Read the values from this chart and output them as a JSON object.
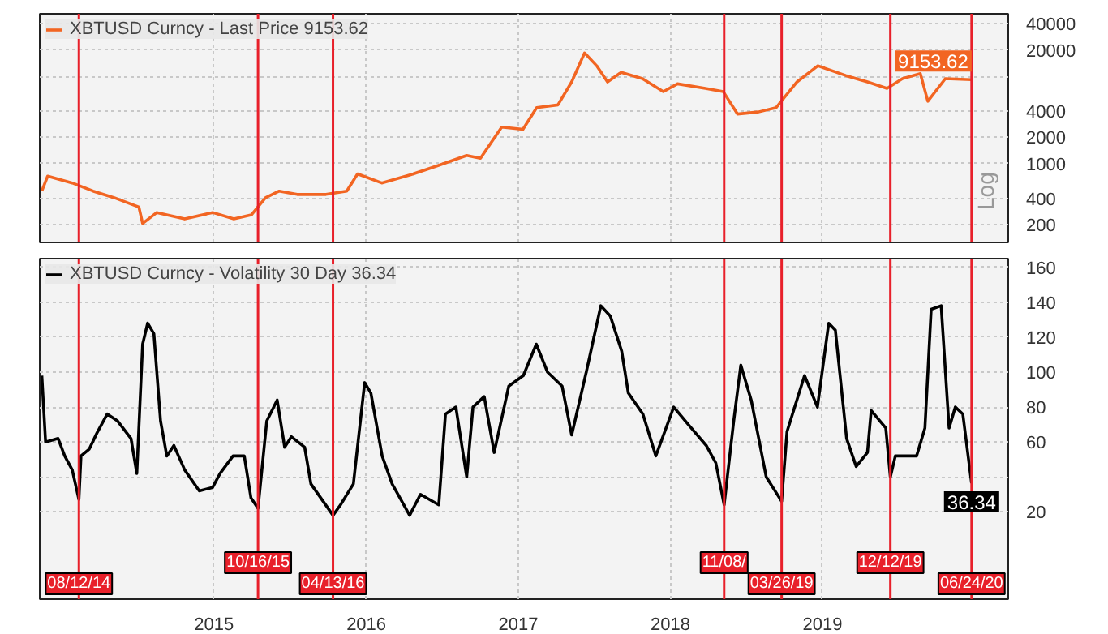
{
  "chart_data": [
    {
      "type": "line",
      "tick_labels": "y",
      "log": "y",
      "grid": true,
      "legend": "top left",
      "xlim": [
        "2014-05-10",
        "2020-09-20"
      ],
      "ylim": [
        125,
        52000
      ],
      "xticks": [
        {
          "value": "2015-07-02",
          "label": null
        },
        {
          "value": "2016-07-02",
          "label": null
        },
        {
          "value": "2017-07-02",
          "label": null
        },
        {
          "value": "2018-07-02",
          "label": null
        },
        {
          "value": "2019-07-02",
          "label": null
        }
      ],
      "yticks": [
        200,
        400,
        1000,
        2000,
        4000,
        {
          "value": 10000,
          "label": null
        },
        20000,
        40000
      ],
      "series": [
        {
          "name": "XBTUSD Curncy - Last Price 9153.62",
          "color": "#f26522",
          "x": [
            "2014-05-15",
            "2014-05-29",
            "2014-07-27",
            "2014-09-15",
            "2014-11-05",
            "2015-01-03",
            "2015-01-12",
            "2015-02-15",
            "2015-04-23",
            "2015-06-29",
            "2015-08-19",
            "2015-09-30",
            "2015-11-03",
            "2015-12-06",
            "2016-01-18",
            "2016-03-27",
            "2016-05-16",
            "2016-06-11",
            "2016-08-08",
            "2016-10-15",
            "2016-12-21",
            "2017-02-28",
            "2017-04-02",
            "2017-05-23",
            "2017-07-13",
            "2017-08-15",
            "2017-10-05",
            "2017-11-07",
            "2017-12-08",
            "2018-01-06",
            "2018-02-01",
            "2018-03-06",
            "2018-04-26",
            "2018-06-15",
            "2018-07-19",
            "2018-09-24",
            "2018-11-06",
            "2018-12-10",
            "2019-01-29",
            "2019-03-13",
            "2019-05-02",
            "2019-06-21",
            "2019-08-27",
            "2019-10-18",
            "2019-12-04",
            "2020-01-10",
            "2020-02-22",
            "2020-03-11",
            "2020-04-22",
            "2020-06-24"
          ],
          "values": [
            484,
            718,
            600,
            484,
            406,
            318,
            206,
            275,
            232,
            275,
            232,
            258,
            406,
            484,
            443,
            443,
            484,
            762,
            600,
            740,
            948,
            1240,
            1150,
            2620,
            2470,
            4380,
            4700,
            8630,
            18500,
            13200,
            8630,
            11100,
            9400,
            6670,
            8200,
            7270,
            6660,
            3700,
            3900,
            4380,
            8630,
            13200,
            10200,
            8630,
            7270,
            9400,
            10740,
            5180,
            9400,
            9153.62
          ]
        }
      ],
      "ref_lines": [
        {
          "axis": "x",
          "value": "2014-08-12",
          "label": null,
          "color": "#e8202a"
        },
        {
          "axis": "x",
          "value": "2015-10-16",
          "label": null,
          "color": "#e8202a"
        },
        {
          "axis": "x",
          "value": "2016-04-13",
          "label": null,
          "color": "#e8202a"
        },
        {
          "axis": "x",
          "value": "2018-11-08",
          "label": null,
          "color": "#e8202a"
        },
        {
          "axis": "x",
          "value": "2019-03-26",
          "label": null,
          "color": "#e8202a"
        },
        {
          "axis": "x",
          "value": "2019-12-12",
          "label": null,
          "color": "#e8202a"
        },
        {
          "axis": "x",
          "value": "2020-06-24",
          "label": null,
          "color": "#e8202a"
        }
      ],
      "annotations": [
        {
          "text": "9153.62",
          "x": "2020-06-24",
          "y": 9153.62
        },
        "Log"
      ]
    },
    {
      "type": "line",
      "grid": true,
      "legend": "top left",
      "xlim": [
        "2014-05-10",
        "2020-09-20"
      ],
      "ylim": [
        -30,
        165
      ],
      "xticks": [
        {
          "value": "2015-07-02",
          "label": "2015"
        },
        {
          "value": "2016-07-02",
          "label": "2016"
        },
        {
          "value": "2017-07-02",
          "label": "2017"
        },
        {
          "value": "2018-07-02",
          "label": "2018"
        },
        {
          "value": "2019-07-02",
          "label": "2019"
        }
      ],
      "yticks": [
        20,
        {
          "value": 40,
          "label": null
        },
        60,
        80,
        100,
        120,
        140,
        160
      ],
      "series": [
        {
          "name": "XBTUSD Curncy - Volatility 30 Day 36.34",
          "color": "#000000",
          "x": [
            "2014-05-15",
            "2014-05-24",
            "2014-06-23",
            "2014-07-09",
            "2014-07-27",
            "2014-08-12",
            "2014-08-17",
            "2014-09-06",
            "2014-09-24",
            "2014-10-19",
            "2014-11-13",
            "2014-12-15",
            "2014-12-29",
            "2015-01-12",
            "2015-01-24",
            "2015-02-08",
            "2015-02-24",
            "2015-03-11",
            "2015-03-28",
            "2015-04-23",
            "2015-05-28",
            "2015-06-29",
            "2015-07-17",
            "2015-08-17",
            "2015-09-13",
            "2015-09-29",
            "2015-10-16",
            "2015-11-06",
            "2015-12-01",
            "2015-12-19",
            "2016-01-04",
            "2016-02-05",
            "2016-02-20",
            "2016-04-13",
            "2016-05-01",
            "2016-06-01",
            "2016-06-28",
            "2016-07-13",
            "2016-08-09",
            "2016-09-02",
            "2016-10-14",
            "2016-11-09",
            "2016-12-23",
            "2017-01-08",
            "2017-02-02",
            "2017-02-28",
            "2017-03-15",
            "2017-04-11",
            "2017-05-05",
            "2017-06-09",
            "2017-07-14",
            "2017-08-14",
            "2017-09-10",
            "2017-10-15",
            "2017-11-07",
            "2017-12-12",
            "2018-01-16",
            "2018-02-08",
            "2018-03-07",
            "2018-03-23",
            "2018-04-27",
            "2018-05-28",
            "2018-07-10",
            "2018-08-14",
            "2018-09-26",
            "2018-10-19",
            "2018-11-08",
            "2018-12-01",
            "2018-12-18",
            "2019-01-12",
            "2019-02-17",
            "2019-03-26",
            "2019-04-08",
            "2019-05-20",
            "2019-06-20",
            "2019-07-17",
            "2019-08-02",
            "2019-08-29",
            "2019-09-21",
            "2019-10-18",
            "2019-10-27",
            "2019-12-01",
            "2019-12-12",
            "2019-12-24",
            "2020-02-13",
            "2020-03-04",
            "2020-03-19",
            "2020-04-12",
            "2020-05-01",
            "2020-05-16",
            "2020-06-03",
            "2020-06-24"
          ],
          "values": [
            98,
            60,
            62,
            52,
            44,
            27,
            52,
            56,
            65,
            76,
            72,
            62,
            42,
            116,
            128,
            122,
            72,
            52,
            58,
            44,
            32,
            34,
            42,
            52,
            52,
            28,
            22,
            72,
            84,
            57,
            63,
            57,
            36,
            18,
            24,
            36,
            94,
            88,
            52,
            36,
            18,
            30,
            24,
            76,
            80,
            40,
            80,
            86,
            54,
            92,
            98,
            116,
            100,
            92,
            64,
            100,
            138,
            132,
            112,
            88,
            76,
            52,
            80,
            70,
            58,
            48,
            24,
            72,
            104,
            84,
            40,
            26,
            66,
            98,
            80,
            128,
            124,
            62,
            46,
            54,
            78,
            68,
            40,
            52,
            52,
            68,
            136,
            138,
            68,
            80,
            76,
            36.34
          ]
        }
      ],
      "ref_lines": [
        {
          "axis": "x",
          "value": "2014-08-12",
          "label": "08/12/14",
          "color": "#e8202a"
        },
        {
          "axis": "x",
          "value": "2015-10-16",
          "label": "10/16/15",
          "color": "#e8202a"
        },
        {
          "axis": "x",
          "value": "2016-04-13",
          "label": "04/13/16",
          "color": "#e8202a"
        },
        {
          "axis": "x",
          "value": "2018-11-08",
          "label": "11/08/",
          "color": "#e8202a"
        },
        {
          "axis": "x",
          "value": "2019-03-26",
          "label": "03/26/19",
          "color": "#e8202a"
        },
        {
          "axis": "x",
          "value": "2019-12-12",
          "label": "12/12/19",
          "color": "#e8202a"
        },
        {
          "axis": "x",
          "value": "2020-06-24",
          "label": "06/24/20",
          "color": "#e8202a"
        }
      ],
      "annotations": [
        {
          "text": "36.34",
          "x": "2020-06-24",
          "y": 36.34
        }
      ]
    }
  ]
}
